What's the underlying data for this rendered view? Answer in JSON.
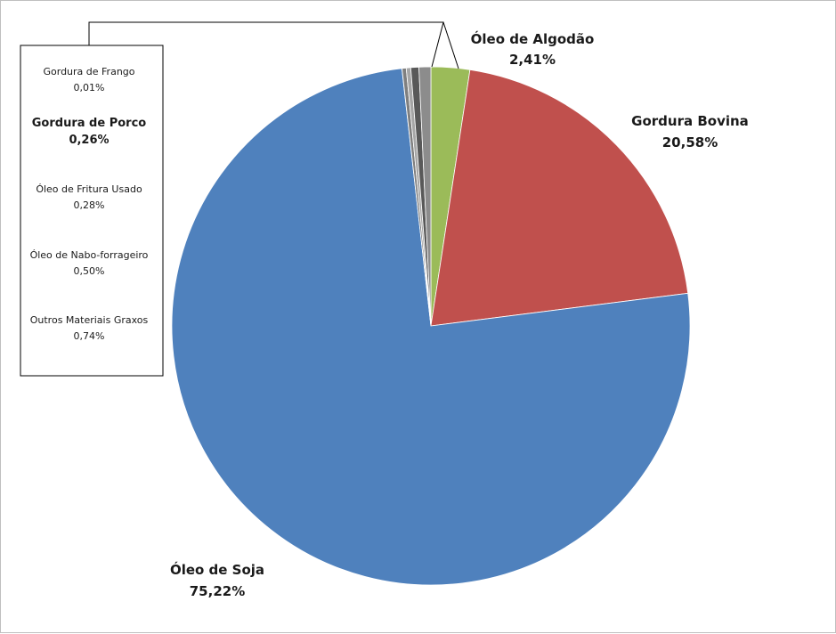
{
  "chart_data": {
    "type": "pie",
    "start_angle_deg": 0,
    "direction": "clockwise",
    "slices": [
      {
        "key": "algodao",
        "label": "Óleo de Algodão",
        "value_text": "2,41%",
        "value": 2.41,
        "color": "#9bbb59"
      },
      {
        "key": "bovina",
        "label": "Gordura Bovina",
        "value_text": "20,58%",
        "value": 20.58,
        "color": "#c0504d"
      },
      {
        "key": "soja",
        "label": "Óleo de Soja",
        "value_text": "75,22%",
        "value": 75.22,
        "color": "#4f81bd"
      },
      {
        "key": "frango",
        "label": "Gordura de Frango",
        "value_text": "0,01%",
        "value": 0.01,
        "color": "#404040"
      },
      {
        "key": "porco",
        "label": "Gordura de Porco",
        "value_text": "0,26%",
        "value": 0.26,
        "color": "#7f7f7f"
      },
      {
        "key": "fritura",
        "label": "Óleo de Fritura Usado",
        "value_text": "0,28%",
        "value": 0.28,
        "color": "#a6a6a6"
      },
      {
        "key": "nabo",
        "label": "Óleo de Nabo-forrageiro",
        "value_text": "0,50%",
        "value": 0.5,
        "color": "#595959"
      },
      {
        "key": "outros",
        "label": "Outros Materiais Graxos",
        "value_text": "0,74%",
        "value": 0.74,
        "color": "#8c8c8c"
      }
    ]
  }
}
